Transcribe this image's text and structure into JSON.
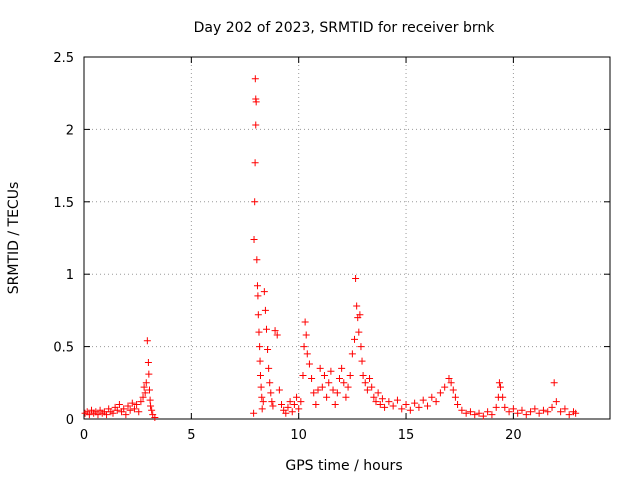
{
  "chart_data": {
    "type": "scatter",
    "title": "Day 202 of 2023, SRMTID for receiver brnk",
    "xlabel": "GPS time / hours",
    "ylabel": "SRMTID / TECUs",
    "xlim": [
      0,
      24.5
    ],
    "ylim": [
      0,
      2.5
    ],
    "xticks": [
      "0",
      "5",
      "10",
      "15",
      "20"
    ],
    "yticks": [
      "0",
      "0.5",
      "1",
      "1.5",
      "2",
      "2.5"
    ],
    "grid": true,
    "marker": "+",
    "series": [
      {
        "name": "SRMTID",
        "color": "#ff0000",
        "points": [
          [
            0.05,
            0.04
          ],
          [
            0.15,
            0.05
          ],
          [
            0.25,
            0.03
          ],
          [
            0.35,
            0.06
          ],
          [
            0.45,
            0.04
          ],
          [
            0.55,
            0.05
          ],
          [
            0.65,
            0.03
          ],
          [
            0.75,
            0.06
          ],
          [
            0.85,
            0.04
          ],
          [
            0.95,
            0.05
          ],
          [
            1.05,
            0.03
          ],
          [
            1.15,
            0.07
          ],
          [
            1.25,
            0.05
          ],
          [
            1.35,
            0.04
          ],
          [
            1.45,
            0.08
          ],
          [
            1.55,
            0.06
          ],
          [
            1.65,
            0.1
          ],
          [
            1.75,
            0.05
          ],
          [
            1.85,
            0.07
          ],
          [
            1.95,
            0.03
          ],
          [
            2.05,
            0.09
          ],
          [
            2.15,
            0.06
          ],
          [
            2.25,
            0.11
          ],
          [
            2.35,
            0.07
          ],
          [
            2.45,
            0.1
          ],
          [
            2.55,
            0.05
          ],
          [
            2.65,
            0.12
          ],
          [
            2.75,
            0.15
          ],
          [
            2.8,
            0.22
          ],
          [
            2.85,
            0.18
          ],
          [
            2.9,
            0.25
          ],
          [
            2.95,
            0.54
          ],
          [
            3.0,
            0.39
          ],
          [
            3.02,
            0.31
          ],
          [
            3.05,
            0.2
          ],
          [
            3.08,
            0.13
          ],
          [
            3.1,
            0.09
          ],
          [
            3.15,
            0.06
          ],
          [
            3.2,
            0.03
          ],
          [
            3.3,
            0.01
          ],
          [
            7.9,
            0.04
          ],
          [
            7.92,
            1.24
          ],
          [
            7.95,
            1.5
          ],
          [
            7.97,
            1.77
          ],
          [
            8.0,
            2.03
          ],
          [
            8.0,
            2.21
          ],
          [
            7.98,
            2.35
          ],
          [
            8.02,
            2.19
          ],
          [
            8.05,
            1.1
          ],
          [
            8.08,
            0.92
          ],
          [
            8.1,
            0.85
          ],
          [
            8.12,
            0.72
          ],
          [
            8.15,
            0.6
          ],
          [
            8.18,
            0.5
          ],
          [
            8.2,
            0.4
          ],
          [
            8.22,
            0.3
          ],
          [
            8.25,
            0.22
          ],
          [
            8.28,
            0.15
          ],
          [
            8.3,
            0.07
          ],
          [
            8.35,
            0.12
          ],
          [
            8.4,
            0.88
          ],
          [
            8.45,
            0.75
          ],
          [
            8.5,
            0.62
          ],
          [
            8.55,
            0.48
          ],
          [
            8.6,
            0.35
          ],
          [
            8.65,
            0.25
          ],
          [
            8.7,
            0.18
          ],
          [
            8.75,
            0.12
          ],
          [
            8.8,
            0.09
          ],
          [
            8.9,
            0.61
          ],
          [
            9.0,
            0.58
          ],
          [
            9.1,
            0.2
          ],
          [
            9.2,
            0.1
          ],
          [
            9.3,
            0.06
          ],
          [
            9.4,
            0.04
          ],
          [
            9.5,
            0.08
          ],
          [
            9.6,
            0.12
          ],
          [
            9.7,
            0.05
          ],
          [
            9.8,
            0.1
          ],
          [
            9.9,
            0.15
          ],
          [
            10.0,
            0.07
          ],
          [
            10.1,
            0.12
          ],
          [
            10.2,
            0.3
          ],
          [
            10.25,
            0.5
          ],
          [
            10.3,
            0.67
          ],
          [
            10.35,
            0.58
          ],
          [
            10.4,
            0.45
          ],
          [
            10.5,
            0.38
          ],
          [
            10.6,
            0.28
          ],
          [
            10.7,
            0.18
          ],
          [
            10.8,
            0.1
          ],
          [
            10.9,
            0.2
          ],
          [
            11.0,
            0.35
          ],
          [
            11.1,
            0.22
          ],
          [
            11.2,
            0.3
          ],
          [
            11.3,
            0.15
          ],
          [
            11.4,
            0.25
          ],
          [
            11.5,
            0.33
          ],
          [
            11.6,
            0.2
          ],
          [
            11.7,
            0.1
          ],
          [
            11.8,
            0.18
          ],
          [
            11.9,
            0.28
          ],
          [
            12.0,
            0.35
          ],
          [
            12.1,
            0.25
          ],
          [
            12.2,
            0.15
          ],
          [
            12.3,
            0.22
          ],
          [
            12.4,
            0.3
          ],
          [
            12.5,
            0.45
          ],
          [
            12.6,
            0.55
          ],
          [
            12.65,
            0.97
          ],
          [
            12.7,
            0.78
          ],
          [
            12.75,
            0.7
          ],
          [
            12.8,
            0.6
          ],
          [
            12.85,
            0.72
          ],
          [
            12.9,
            0.5
          ],
          [
            12.95,
            0.4
          ],
          [
            13.0,
            0.3
          ],
          [
            13.1,
            0.25
          ],
          [
            13.2,
            0.2
          ],
          [
            13.3,
            0.28
          ],
          [
            13.4,
            0.22
          ],
          [
            13.5,
            0.15
          ],
          [
            13.6,
            0.12
          ],
          [
            13.7,
            0.18
          ],
          [
            13.8,
            0.1
          ],
          [
            13.9,
            0.14
          ],
          [
            14.0,
            0.08
          ],
          [
            14.2,
            0.12
          ],
          [
            14.4,
            0.09
          ],
          [
            14.6,
            0.13
          ],
          [
            14.8,
            0.07
          ],
          [
            15.0,
            0.1
          ],
          [
            15.2,
            0.06
          ],
          [
            15.4,
            0.11
          ],
          [
            15.6,
            0.08
          ],
          [
            15.8,
            0.13
          ],
          [
            16.0,
            0.09
          ],
          [
            16.2,
            0.15
          ],
          [
            16.4,
            0.12
          ],
          [
            16.6,
            0.18
          ],
          [
            16.8,
            0.22
          ],
          [
            17.0,
            0.28
          ],
          [
            17.1,
            0.25
          ],
          [
            17.2,
            0.2
          ],
          [
            17.3,
            0.15
          ],
          [
            17.4,
            0.1
          ],
          [
            17.6,
            0.06
          ],
          [
            17.8,
            0.04
          ],
          [
            18.0,
            0.05
          ],
          [
            18.2,
            0.03
          ],
          [
            18.4,
            0.04
          ],
          [
            18.6,
            0.02
          ],
          [
            18.8,
            0.05
          ],
          [
            19.0,
            0.03
          ],
          [
            19.2,
            0.08
          ],
          [
            19.3,
            0.15
          ],
          [
            19.35,
            0.25
          ],
          [
            19.4,
            0.22
          ],
          [
            19.5,
            0.15
          ],
          [
            19.6,
            0.08
          ],
          [
            19.8,
            0.05
          ],
          [
            20.0,
            0.07
          ],
          [
            20.2,
            0.04
          ],
          [
            20.4,
            0.06
          ],
          [
            20.6,
            0.03
          ],
          [
            20.8,
            0.05
          ],
          [
            21.0,
            0.07
          ],
          [
            21.2,
            0.04
          ],
          [
            21.4,
            0.06
          ],
          [
            21.6,
            0.05
          ],
          [
            21.8,
            0.08
          ],
          [
            21.9,
            0.25
          ],
          [
            22.0,
            0.12
          ],
          [
            22.2,
            0.05
          ],
          [
            22.4,
            0.07
          ],
          [
            22.6,
            0.03
          ],
          [
            22.8,
            0.05
          ],
          [
            22.9,
            0.04
          ]
        ]
      }
    ]
  }
}
